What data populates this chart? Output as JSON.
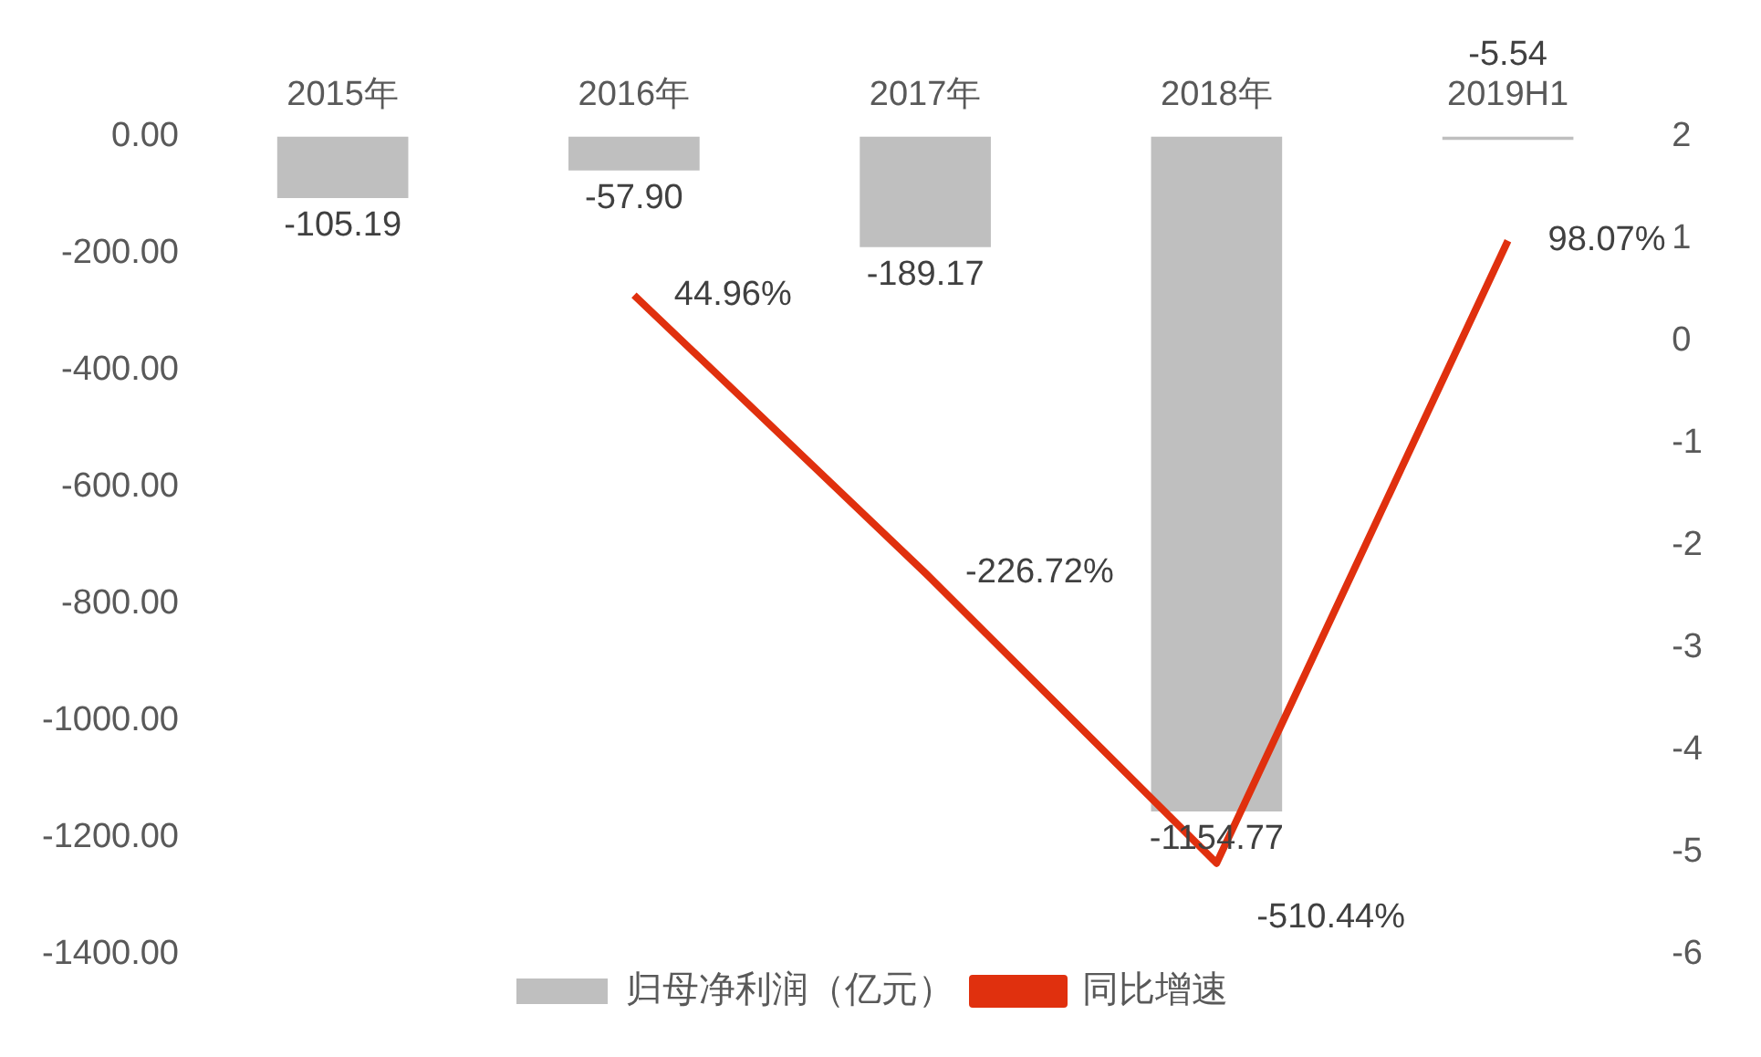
{
  "chart_data": {
    "type": "bar",
    "categories": [
      "2015年",
      "2016年",
      "2017年",
      "2018年",
      "2019H1"
    ],
    "series": [
      {
        "name": "归母净利润（亿元）",
        "color": "#bfbfbf",
        "values": [
          -105.19,
          -57.9,
          -189.17,
          -1154.77,
          -5.54
        ],
        "value_labels": [
          "-105.19",
          "-57.90",
          "-189.17",
          "-1154.77",
          "-5.54"
        ]
      },
      {
        "name": "同比增速",
        "type": "line",
        "axis": "y2",
        "color": "#e0300e",
        "values": [
          null,
          0.4496,
          -2.2672,
          -5.1044,
          0.9807
        ],
        "value_labels": [
          null,
          "44.96%",
          "-226.72%",
          "-510.44%",
          "98.07%"
        ]
      }
    ],
    "ylim": [
      -1400,
      0
    ],
    "yticks": [
      {
        "value": 0,
        "label": "0.00"
      },
      {
        "value": -200,
        "label": "-200.00"
      },
      {
        "value": -400,
        "label": "-400.00"
      },
      {
        "value": -600,
        "label": "-600.00"
      },
      {
        "value": -800,
        "label": "-800.00"
      },
      {
        "value": -1000,
        "label": "-1000.00"
      },
      {
        "value": -1200,
        "label": "-1200.00"
      },
      {
        "value": -1400,
        "label": "-1400.00"
      }
    ],
    "y2lim": [
      -6,
      2
    ],
    "y2ticks": [
      -6,
      -5,
      -4,
      -3,
      -2,
      -1,
      0,
      1,
      2
    ],
    "grid": false,
    "legend": "bottom",
    "marker": "none",
    "line_style": "solid"
  }
}
